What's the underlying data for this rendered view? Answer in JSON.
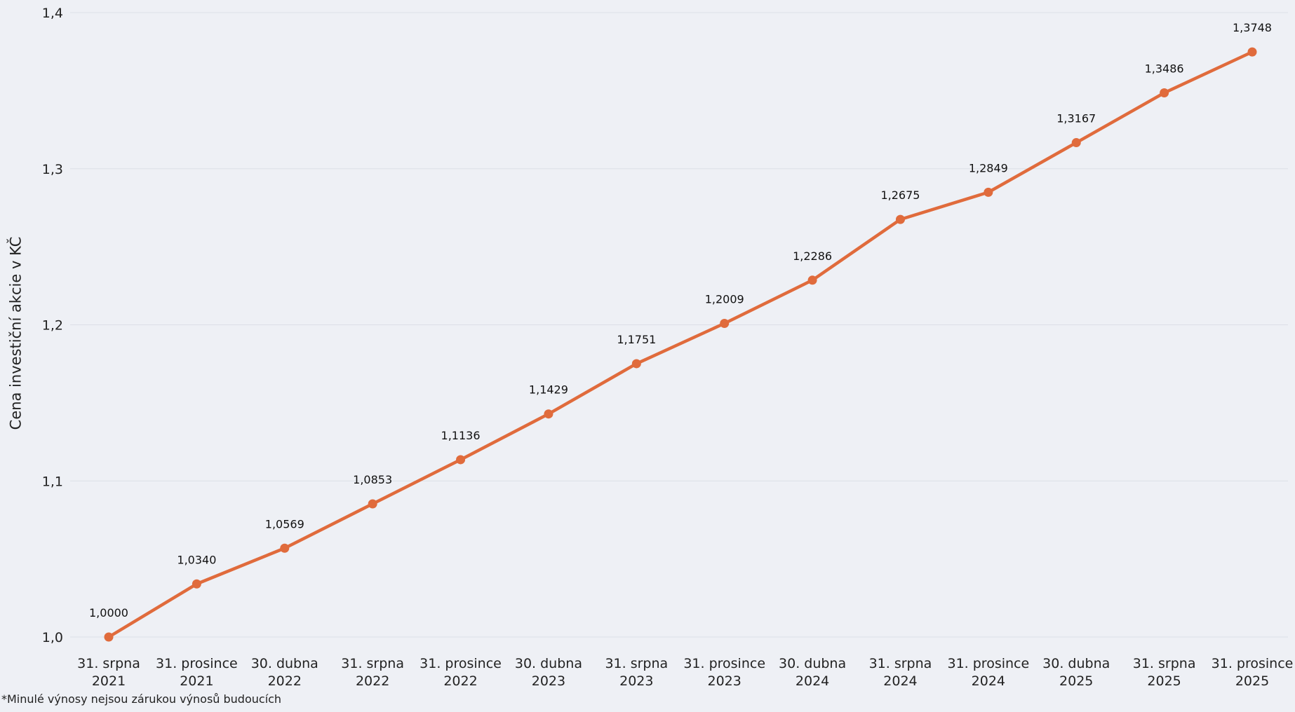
{
  "chart_data": {
    "type": "line",
    "ylabel": "Cena investiční akcie v KČ",
    "xlabel": "",
    "ylim": [
      1.0,
      1.4
    ],
    "yticks": [
      1.0,
      1.1,
      1.2,
      1.3,
      1.4
    ],
    "ytick_labels": [
      "1,0",
      "1,1",
      "1,2",
      "1,3",
      "1,4"
    ],
    "grid": true,
    "categories": [
      [
        "31. srpna",
        "2021"
      ],
      [
        "31. prosince",
        "2021"
      ],
      [
        "30. dubna",
        "2022"
      ],
      [
        "31. srpna",
        "2022"
      ],
      [
        "31. prosince",
        "2022"
      ],
      [
        "30. dubna",
        "2023"
      ],
      [
        "31. srpna",
        "2023"
      ],
      [
        "31. prosince",
        "2023"
      ],
      [
        "30. dubna",
        "2024"
      ],
      [
        "31. srpna",
        "2024"
      ],
      [
        "31. prosince",
        "2024"
      ],
      [
        "30. dubna",
        "2025"
      ],
      [
        "31. srpna",
        "2025"
      ],
      [
        "31. prosince",
        "2025"
      ]
    ],
    "series": [
      {
        "values": [
          1.0,
          1.034,
          1.0569,
          1.0853,
          1.1136,
          1.1429,
          1.1751,
          1.2009,
          1.2286,
          1.2675,
          1.2849,
          1.3167,
          1.3486,
          1.3748
        ],
        "value_labels": [
          "1,0000",
          "1,0340",
          "1,0569",
          "1,0853",
          "1,1136",
          "1,1429",
          "1,1751",
          "1,2009",
          "1,2286",
          "1,2675",
          "1,2849",
          "1,3167",
          "1,3486",
          "1,3748"
        ],
        "color": "#e06b3c"
      }
    ]
  },
  "footnote": "*Minulé výnosy nejsou zárukou výnosů budoucích",
  "colors": {
    "background": "#eef0f5",
    "grid": "#dcdfe6",
    "line": "#e06b3c"
  }
}
